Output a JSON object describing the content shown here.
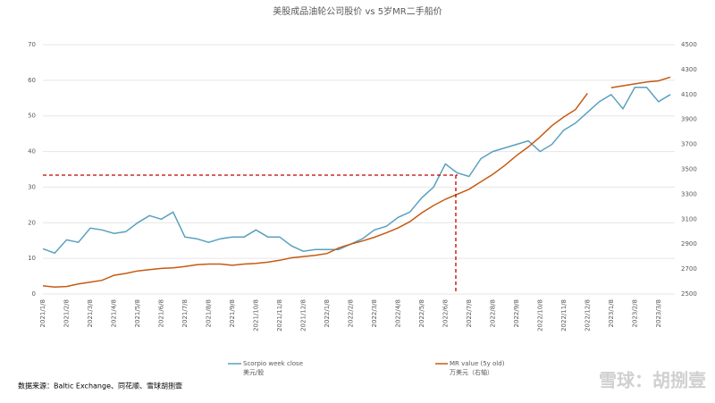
{
  "chart_data": {
    "type": "line",
    "title": "美股成品油轮公司股价 vs 5岁MR二手船价",
    "source": "数据来源：Baltic Exchange、同花顺、雪球胡捌壹",
    "watermark": "雪球：胡捌壹",
    "categories": [
      "2021/1/8",
      null,
      "2021/2/8",
      null,
      "2021/3/8",
      null,
      "2021/4/8",
      null,
      "2021/5/8",
      null,
      "2021/6/8",
      null,
      "2021/7/8",
      null,
      "2021/8/8",
      null,
      "2021/9/8",
      null,
      "2021/10/8",
      null,
      "2021/11/8",
      null,
      "2021/12/8",
      null,
      "2022/1/8",
      null,
      "2022/2/8",
      null,
      "2022/3/8",
      null,
      "2022/4/8",
      null,
      "2022/5/8",
      null,
      "2022/6/8",
      null,
      "2022/7/8",
      null,
      "2022/8/8",
      null,
      "2022/9/8",
      null,
      "2022/10/8",
      null,
      "2022/11/8",
      null,
      "2022/12/8",
      null,
      "2023/1/8",
      null,
      "2023/2/8",
      null,
      "2023/3/8",
      null
    ],
    "series": [
      {
        "name": "Scorpio week close",
        "unit": "美元/股",
        "color": "#5aa0c0",
        "values": [
          12.7,
          11.5,
          15.2,
          14.5,
          18.5,
          18,
          17,
          17.5,
          20,
          22,
          21,
          23,
          16,
          15.5,
          14.5,
          15.5,
          16,
          16,
          18,
          16,
          16,
          13.5,
          12,
          12.5,
          12.5,
          12.5,
          14,
          15.5,
          18,
          19,
          21.5,
          23,
          27,
          30,
          36.5,
          34,
          33,
          38,
          40,
          41,
          42,
          43,
          40,
          42,
          46,
          48,
          51,
          54,
          56,
          52,
          58,
          58,
          54,
          56
        ]
      },
      {
        "name": "MR value (5y old)",
        "unit": "万美元（右轴）",
        "color": "#c55a11",
        "axis": "y2",
        "values": [
          2565,
          2555,
          2560,
          2580,
          2595,
          2610,
          2650,
          2665,
          2685,
          2695,
          2705,
          2710,
          2720,
          2735,
          2740,
          2740,
          2730,
          2740,
          2745,
          2755,
          2770,
          2790,
          2800,
          2810,
          2825,
          2870,
          2900,
          2925,
          2955,
          2990,
          3030,
          3080,
          3150,
          3210,
          3260,
          3300,
          3340,
          3400,
          3460,
          3530,
          3610,
          3680,
          3760,
          3850,
          3920,
          3980,
          4110,
          null,
          4155,
          4170,
          4185,
          4200,
          4210,
          4240
        ]
      }
    ],
    "ylim": [
      0,
      70
    ],
    "yticks": [
      0,
      10,
      20,
      30,
      40,
      50,
      60,
      70
    ],
    "y2lim": [
      2500,
      4500
    ],
    "y2ticks": [
      2500,
      2700,
      2900,
      3100,
      3300,
      3500,
      3700,
      3900,
      4100,
      4300,
      4500
    ],
    "grid": true
  }
}
